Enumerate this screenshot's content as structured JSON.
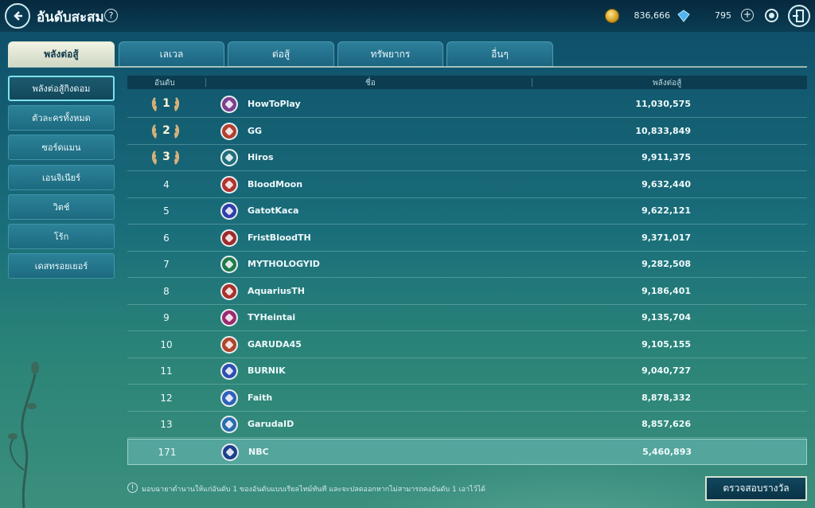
{
  "header": {
    "title": "อันดับสะสม",
    "help": "?",
    "gold": "836,666",
    "gems": "795",
    "plus": "+"
  },
  "tabs": [
    {
      "label": "พลังต่อสู้",
      "active": true
    },
    {
      "label": "เลเวล",
      "active": false
    },
    {
      "label": "ต่อสู้",
      "active": false
    },
    {
      "label": "ทรัพยากร",
      "active": false
    },
    {
      "label": "อื่นๆ",
      "active": false
    }
  ],
  "sidebar": {
    "items": [
      {
        "label": "พลังต่อสู้กิงดอม",
        "active": true
      },
      {
        "label": "ตัวละครทั้งหมด",
        "active": false
      },
      {
        "label": "ซอร์ดแมน",
        "active": false
      },
      {
        "label": "เอนจิเนียร์",
        "active": false
      },
      {
        "label": "วิตช์",
        "active": false
      },
      {
        "label": "โร้ก",
        "active": false
      },
      {
        "label": "เดสทรอยเยอร์",
        "active": false
      }
    ]
  },
  "table": {
    "headers": {
      "rank": "อันดับ",
      "name": "ชื่อ",
      "power": "พลังต่อสู้"
    },
    "rows": [
      {
        "rank": "1",
        "name": "HowToPlay",
        "power": "11,030,575",
        "crest_color": "#7a3f8f"
      },
      {
        "rank": "2",
        "name": "GG",
        "power": "10,833,849",
        "crest_color": "#b0412e"
      },
      {
        "rank": "3",
        "name": "Hiros",
        "power": "9,911,375",
        "crest_color": "#1f6e7a"
      },
      {
        "rank": "4",
        "name": "BloodMoon",
        "power": "9,632,440",
        "crest_color": "#b0332e"
      },
      {
        "rank": "5",
        "name": "GatotKaca",
        "power": "9,622,121",
        "crest_color": "#2f3fa8"
      },
      {
        "rank": "6",
        "name": "FristBloodTH",
        "power": "9,371,017",
        "crest_color": "#9e2b2b"
      },
      {
        "rank": "7",
        "name": "MYTHOLOGYID",
        "power": "9,282,508",
        "crest_color": "#1f7a4a"
      },
      {
        "rank": "8",
        "name": "AquariusTH",
        "power": "9,186,401",
        "crest_color": "#a8312a"
      },
      {
        "rank": "9",
        "name": "TYHeintai",
        "power": "9,135,704",
        "crest_color": "#9a2a6e"
      },
      {
        "rank": "10",
        "name": "GARUDA45",
        "power": "9,105,155",
        "crest_color": "#b0452e"
      },
      {
        "rank": "11",
        "name": "BURNIK",
        "power": "9,040,727",
        "crest_color": "#2d4fb0"
      },
      {
        "rank": "12",
        "name": "Faith",
        "power": "8,878,332",
        "crest_color": "#2e62b8"
      },
      {
        "rank": "13",
        "name": "GarudaID",
        "power": "8,857,626",
        "crest_color": "#2a6cb0"
      }
    ],
    "my_row": {
      "rank": "171",
      "name": "NBC",
      "power": "5,460,893",
      "crest_color": "#1e3f8a"
    }
  },
  "footer": {
    "note": "มอบฉายาตำนานให้แก่อันดับ 1 ของอันดับแบบเรียลไทม์ทันที และจะปลดออกหากไม่สามารถคงอันดับ 1 เอาไว้ได้",
    "reward_button": "ตรวจสอบรางวัล"
  },
  "colors": {
    "accent": "#7fe2ea",
    "medal": "#d8b27a"
  }
}
